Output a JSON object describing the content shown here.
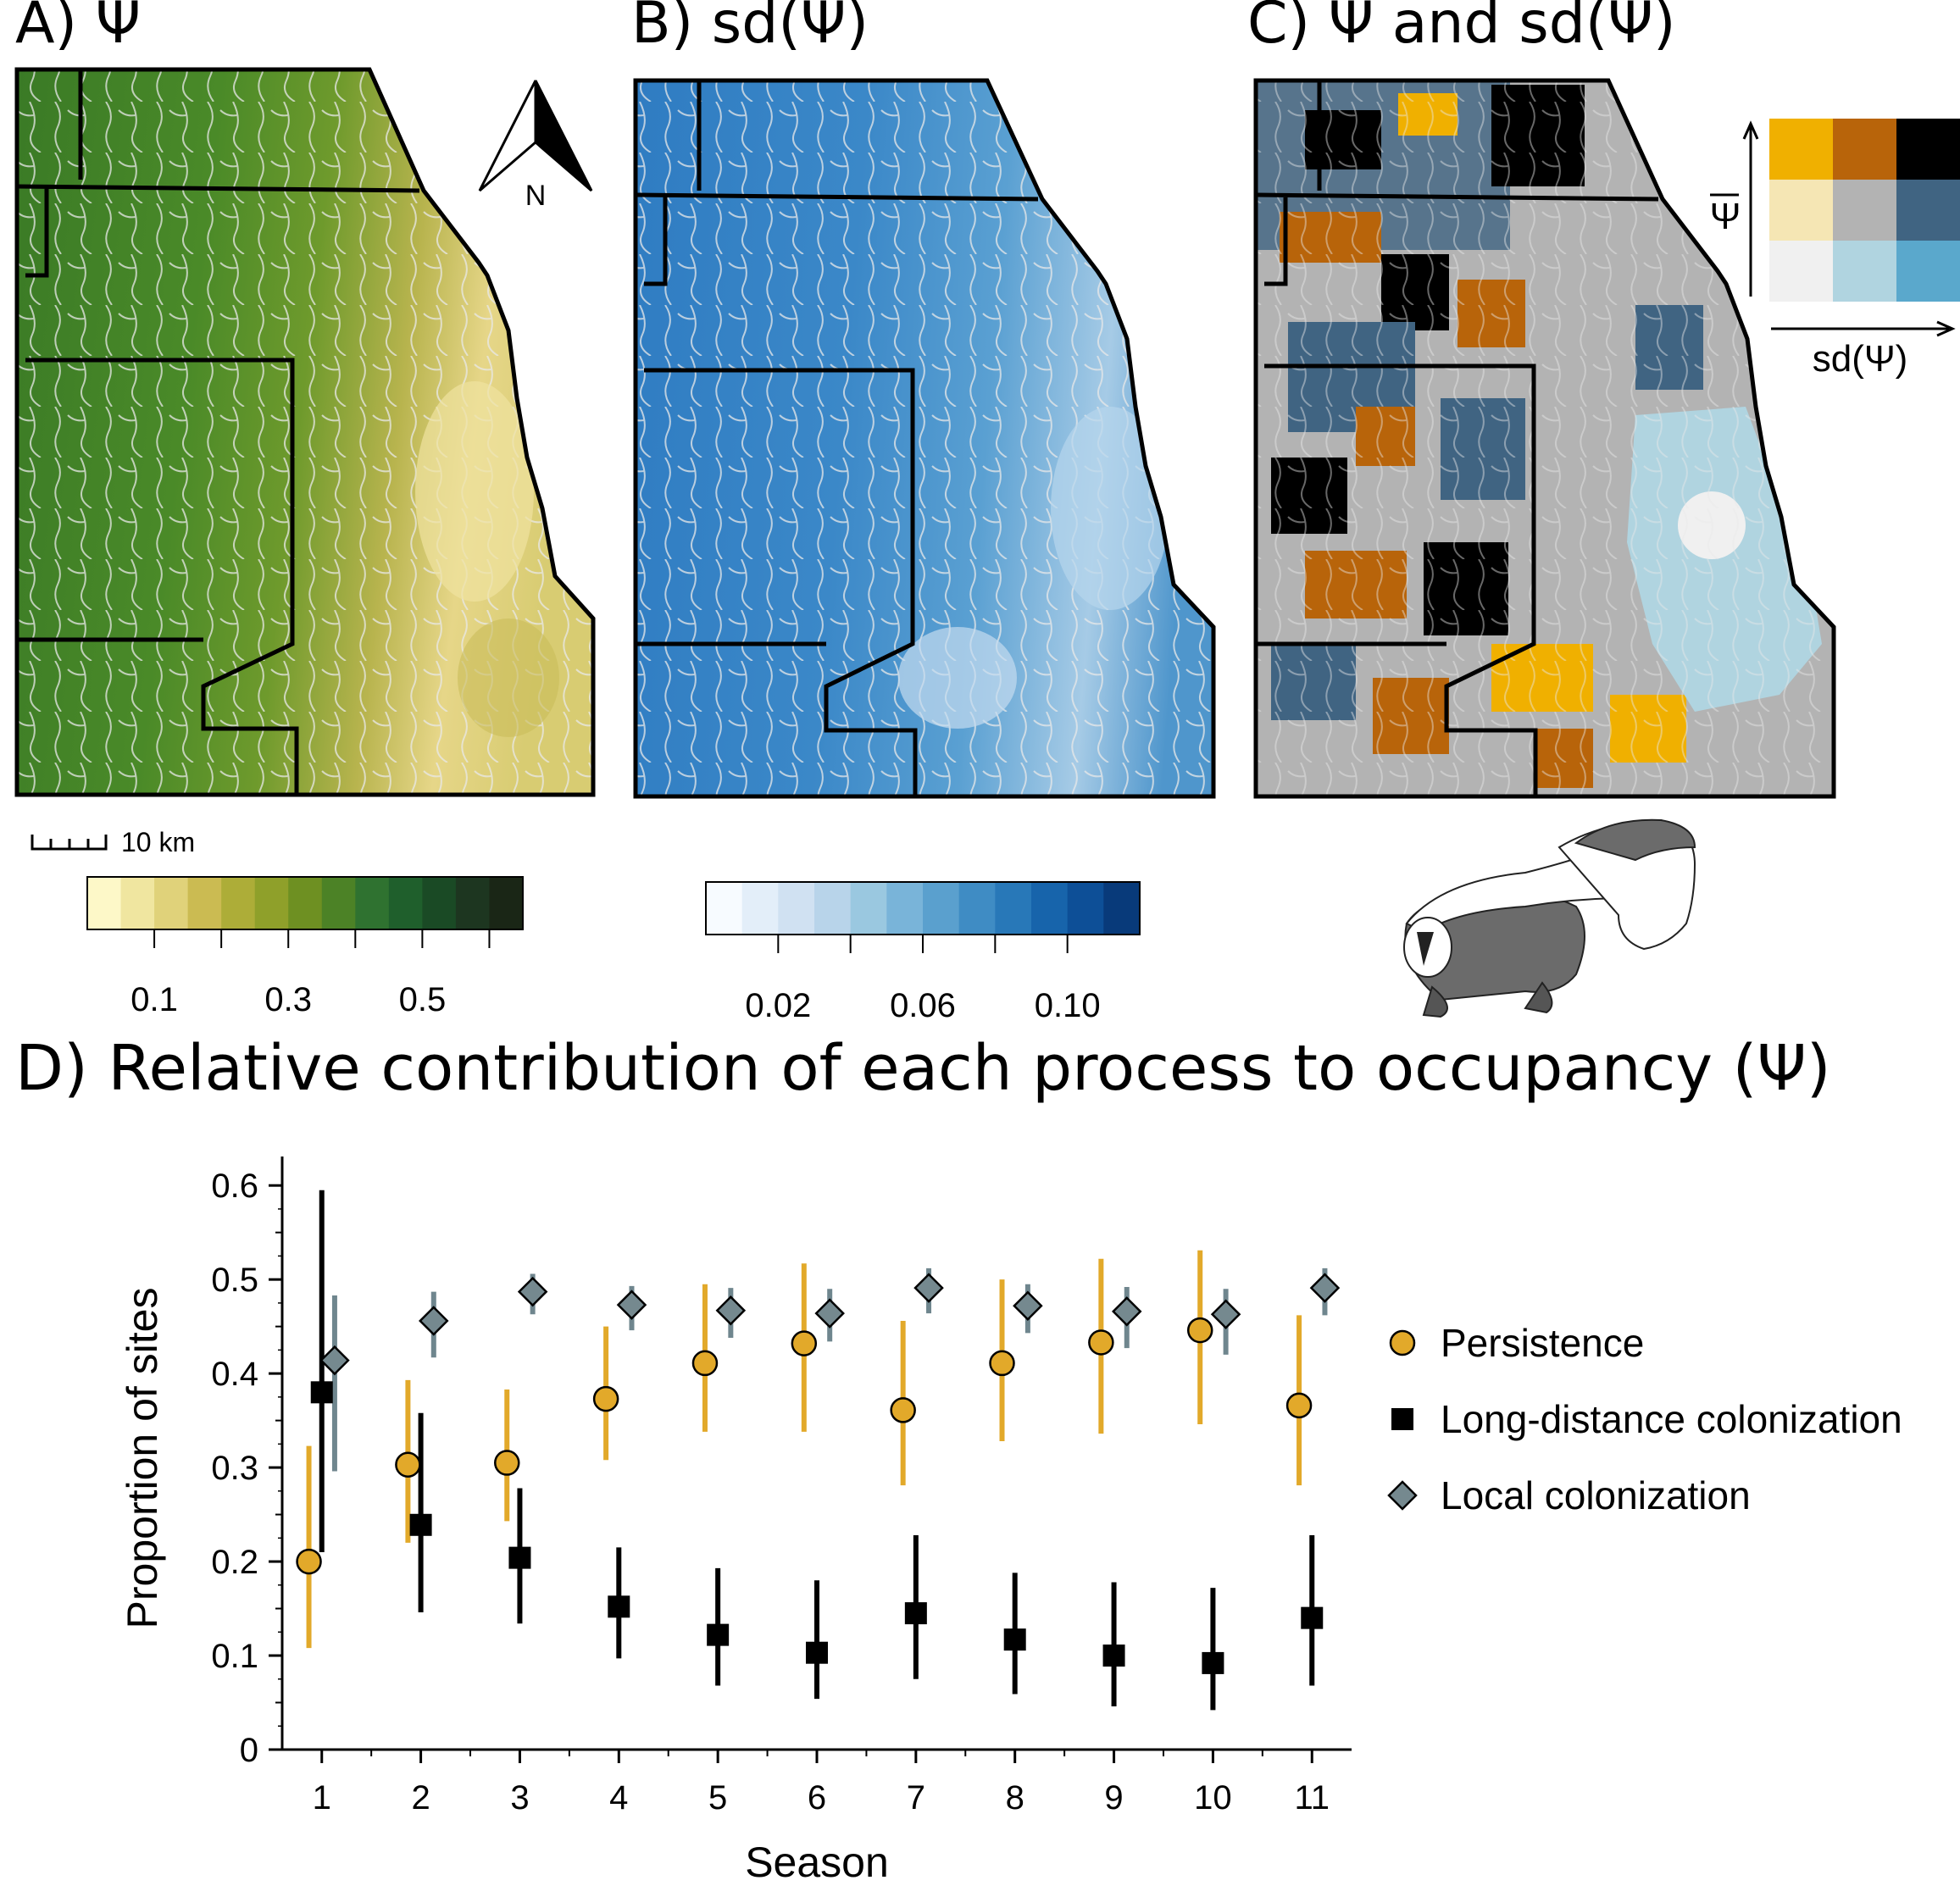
{
  "panels": {
    "a_title": "A) Ψ",
    "b_title": "B) sd(Ψ)",
    "c_title": "C) Ψ and sd(Ψ)",
    "d_title": "D) Relative contribution of each process to occupancy (Ψ)"
  },
  "maps": {
    "north_label": "N",
    "scale_bar_label": "10 km",
    "colorbar_a": {
      "tick_labels": [
        "0.1",
        "0.3",
        "0.5"
      ],
      "colors": [
        "#fdf8c8",
        "#f0e6a0",
        "#e0d27a",
        "#cbbb52",
        "#adad38",
        "#8fa02a",
        "#6e9022",
        "#4c8226",
        "#2f7230",
        "#1f5f2c",
        "#1a4a25",
        "#1d3620",
        "#1a2616"
      ]
    },
    "colorbar_b": {
      "tick_labels": [
        "0.02",
        "0.06",
        "0.10"
      ],
      "colors": [
        "#f7fbff",
        "#e3eef9",
        "#d0e1f2",
        "#b8d4ea",
        "#9ac8e0",
        "#79b4d9",
        "#5aa0ce",
        "#3f8cc4",
        "#2878b8",
        "#1764ab",
        "#0d4f97",
        "#083a7a"
      ]
    },
    "bivariate_legend": {
      "y_label": "Ψ",
      "x_label": "sd(Ψ)",
      "colors": [
        [
          "#f0b000",
          "#b8640a",
          "#000000"
        ],
        [
          "#f5e6b4",
          "#b3b3b3",
          "#406482"
        ],
        [
          "#f0f0f0",
          "#b0d4e0",
          "#5aa8cc"
        ]
      ]
    }
  },
  "chart_data": {
    "type": "scatter",
    "title": "D) Relative contribution of each process to occupancy (Ψ)",
    "xlabel": "Season",
    "ylabel": "Proportion of sites",
    "xlim": [
      0.6,
      11.4
    ],
    "ylim": [
      0,
      0.62
    ],
    "x_ticks": [
      "1",
      "2",
      "3",
      "4",
      "5",
      "6",
      "7",
      "8",
      "9",
      "10",
      "11"
    ],
    "y_ticks": [
      "0",
      "0.1",
      "0.2",
      "0.3",
      "0.4",
      "0.5",
      "0.6"
    ],
    "legend_position": "right",
    "series": [
      {
        "name": "Persistence",
        "marker": "circle",
        "color": "#e2a92a",
        "bar_color": "#e2a92a",
        "x": [
          1,
          2,
          3,
          4,
          5,
          6,
          7,
          8,
          9,
          10,
          11
        ],
        "y": [
          0.2,
          0.303,
          0.305,
          0.373,
          0.411,
          0.432,
          0.361,
          0.411,
          0.433,
          0.446,
          0.366
        ],
        "lower": [
          0.108,
          0.22,
          0.243,
          0.308,
          0.338,
          0.338,
          0.281,
          0.328,
          0.336,
          0.346,
          0.281
        ],
        "upper": [
          0.323,
          0.393,
          0.383,
          0.45,
          0.495,
          0.517,
          0.456,
          0.5,
          0.522,
          0.531,
          0.462
        ]
      },
      {
        "name": "Long-distance colonization",
        "marker": "square",
        "color": "#000000",
        "bar_color": "#000000",
        "x": [
          1,
          2,
          3,
          4,
          5,
          6,
          7,
          8,
          9,
          10,
          11
        ],
        "y": [
          0.38,
          0.239,
          0.204,
          0.152,
          0.122,
          0.103,
          0.145,
          0.117,
          0.1,
          0.092,
          0.14
        ],
        "lower": [
          0.21,
          0.146,
          0.134,
          0.097,
          0.068,
          0.054,
          0.075,
          0.059,
          0.046,
          0.042,
          0.068
        ],
        "upper": [
          0.595,
          0.358,
          0.278,
          0.215,
          0.193,
          0.18,
          0.228,
          0.188,
          0.178,
          0.172,
          0.228
        ]
      },
      {
        "name": "Local colonization",
        "marker": "diamond",
        "color": "#75898f",
        "bar_color": "#6f868e",
        "x": [
          1,
          2,
          3,
          4,
          5,
          6,
          7,
          8,
          9,
          10,
          11
        ],
        "y": [
          0.414,
          0.456,
          0.487,
          0.473,
          0.467,
          0.464,
          0.491,
          0.472,
          0.466,
          0.463,
          0.491
        ],
        "lower": [
          0.296,
          0.417,
          0.463,
          0.446,
          0.438,
          0.434,
          0.464,
          0.443,
          0.427,
          0.42,
          0.462
        ],
        "upper": [
          0.483,
          0.487,
          0.506,
          0.493,
          0.491,
          0.49,
          0.512,
          0.495,
          0.492,
          0.49,
          0.512
        ]
      }
    ]
  }
}
